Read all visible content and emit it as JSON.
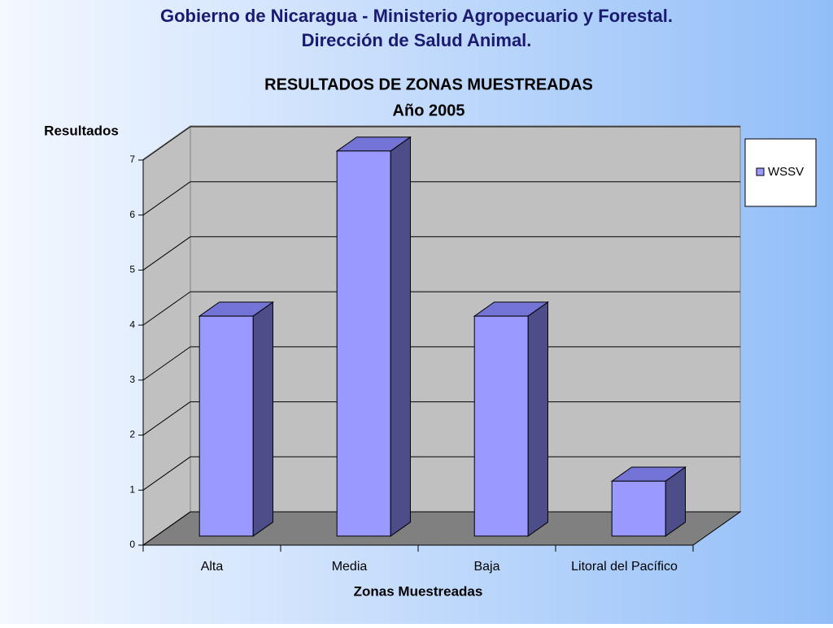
{
  "header": {
    "line1": "Gobierno de Nicaragua - Ministerio Agropecuario y Forestal.",
    "line2": "Dirección de Salud Animal."
  },
  "chart_data": {
    "type": "bar3d",
    "title": "RESULTADOS DE ZONAS MUESTREADAS",
    "subtitle": "Año 2005",
    "y_label": "Resultados",
    "x_label": "Zonas Muestreadas",
    "categories": [
      "Alta",
      "Media",
      "Baja",
      "Litoral del Pacífico"
    ],
    "series": [
      {
        "name": "WSSV",
        "color": "#9999ff",
        "values": [
          4,
          7,
          4,
          1
        ]
      }
    ],
    "ylim": [
      0,
      7
    ],
    "yticks": [
      0,
      1,
      2,
      3,
      4,
      5,
      6,
      7
    ],
    "grid": true,
    "legend": "right"
  }
}
